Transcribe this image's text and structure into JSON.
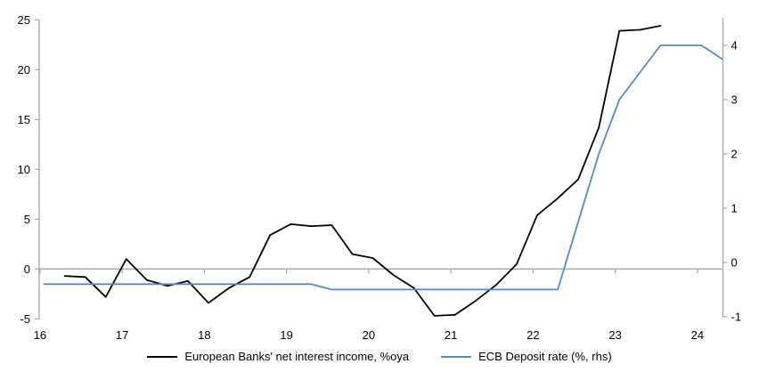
{
  "chart_data": {
    "type": "line",
    "title": "",
    "x_axis": {
      "tick_labels": [
        "16",
        "17",
        "18",
        "19",
        "20",
        "21",
        "22",
        "23",
        "24"
      ],
      "tick_values": [
        16,
        17,
        18,
        19,
        20,
        21,
        22,
        23,
        24
      ],
      "range": [
        15.99,
        24.31
      ]
    },
    "left_y_axis": {
      "tick_values": [
        -5,
        0,
        5,
        10,
        15,
        20,
        25
      ],
      "range": [
        -5,
        25
      ],
      "applies_to": "European Banks' net interest income, %oya"
    },
    "right_y_axis": {
      "tick_values": [
        -1,
        0,
        1,
        2,
        3,
        4
      ],
      "range": [
        -1.04,
        4.47
      ],
      "applies_to": "ECB Deposit rate (%, rhs)"
    },
    "series": [
      {
        "name": "European Banks' net interest income, %oya",
        "axis": "left",
        "color": "#000000",
        "x": [
          16.3,
          16.55,
          16.8,
          17.05,
          17.3,
          17.55,
          17.8,
          18.05,
          18.3,
          18.55,
          18.8,
          19.05,
          19.3,
          19.55,
          19.8,
          20.05,
          20.3,
          20.55,
          20.8,
          21.05,
          21.3,
          21.55,
          21.8,
          22.05,
          22.3,
          22.55,
          22.8,
          23.05,
          23.3,
          23.55
        ],
        "values": [
          -0.7,
          -0.8,
          -2.8,
          1.0,
          -1.1,
          -1.7,
          -1.2,
          -3.4,
          -1.9,
          -0.8,
          3.4,
          4.5,
          4.3,
          4.4,
          1.5,
          1.1,
          -0.6,
          -1.9,
          -4.7,
          -4.6,
          -3.2,
          -1.6,
          0.5,
          5.4,
          7.1,
          9.0,
          14.2,
          23.9,
          24.0,
          24.4
        ]
      },
      {
        "name": "ECB Deposit rate (%, rhs)",
        "axis": "right",
        "color": "#5289c7",
        "x": [
          16.05,
          19.3,
          19.55,
          22.3,
          22.55,
          22.8,
          23.05,
          23.3,
          23.55,
          24.05,
          24.3
        ],
        "values": [
          -0.4,
          -0.4,
          -0.5,
          -0.5,
          0.75,
          2.0,
          3.0,
          3.5,
          4.0,
          4.0,
          3.75
        ]
      }
    ],
    "legend": {
      "position": "bottom-center",
      "entries": [
        {
          "label": "European Banks' net interest income, %oya",
          "color": "#000000"
        },
        {
          "label": "ECB Deposit rate (%, rhs)",
          "color": "#5289c7"
        }
      ]
    },
    "gridlines": "zero-line-only",
    "colors": {
      "axis": "#a6a6a6",
      "zero_line": "#a6a6a6",
      "text": "#000000",
      "background": "#ffffff"
    }
  }
}
